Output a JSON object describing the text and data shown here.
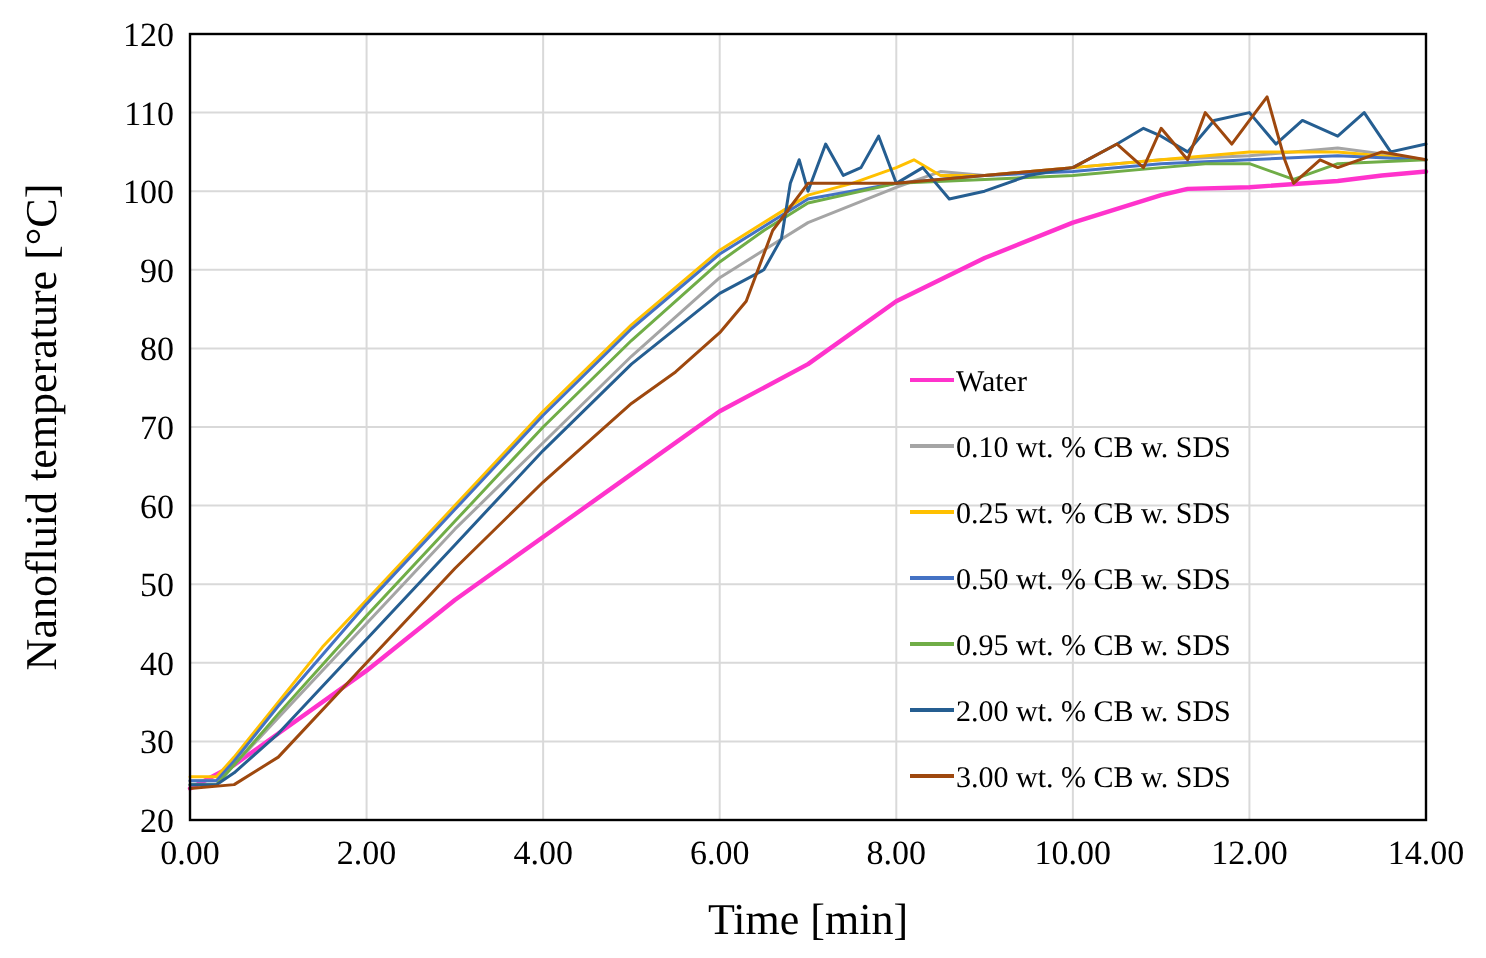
{
  "chart_data": {
    "type": "line",
    "xlabel": "Time [min]",
    "ylabel": "Nanofluid temperature [°C]",
    "xlim": [
      0,
      14
    ],
    "ylim": [
      20,
      120
    ],
    "xticks": [
      {
        "value": 0,
        "label": "0.00"
      },
      {
        "value": 2,
        "label": "2.00"
      },
      {
        "value": 4,
        "label": "4.00"
      },
      {
        "value": 6,
        "label": "6.00"
      },
      {
        "value": 8,
        "label": "8.00"
      },
      {
        "value": 10,
        "label": "10.00"
      },
      {
        "value": 12,
        "label": "12.00"
      },
      {
        "value": 14,
        "label": "14.00"
      }
    ],
    "yticks": [
      20,
      30,
      40,
      50,
      60,
      70,
      80,
      90,
      100,
      110,
      120
    ],
    "grid": true,
    "legend": "bottom right",
    "marker": "none",
    "line_style": "solid",
    "series": [
      {
        "name": "Water",
        "color": "#ff33cc",
        "x": [
          0,
          0.5,
          1,
          2,
          3,
          4,
          5,
          6,
          7,
          8,
          9,
          10,
          11,
          11.3,
          12,
          13,
          13.5,
          14
        ],
        "values": [
          24,
          27,
          31,
          39,
          48,
          56,
          64,
          72,
          78,
          86,
          91.5,
          96,
          99.5,
          100.3,
          100.5,
          101.3,
          102,
          102.5
        ]
      },
      {
        "name": "0.10 wt. % CB w. SDS",
        "color": "#a5a5a5",
        "x": [
          0,
          0.3,
          0.5,
          1,
          2,
          3,
          4,
          5,
          6,
          7,
          8,
          8.5,
          9,
          10,
          11,
          12,
          13,
          14
        ],
        "values": [
          25,
          25,
          27,
          33,
          45,
          57,
          68,
          79,
          89,
          96,
          100.5,
          102.5,
          102,
          103,
          104,
          104.5,
          105.5,
          104
        ]
      },
      {
        "name": "0.25 wt. % CB w. SDS",
        "color": "#ffc000",
        "x": [
          0,
          0.3,
          0.5,
          1,
          1.5,
          2,
          3,
          4,
          5,
          6,
          6.5,
          7,
          7.5,
          8,
          8.2,
          8.5,
          9,
          10,
          11,
          12,
          13,
          14
        ],
        "values": [
          25.5,
          25.5,
          28,
          35,
          42,
          48,
          60,
          72,
          83,
          92.5,
          96,
          99.5,
          101,
          103,
          104,
          102,
          102,
          103,
          104,
          105,
          105,
          104
        ]
      },
      {
        "name": "0.50 wt. % CB w. SDS",
        "color": "#4472c4",
        "x": [
          0,
          0.3,
          0.5,
          1,
          2,
          3,
          4,
          5,
          6,
          6.5,
          7,
          8,
          9,
          10,
          11,
          12,
          13,
          14
        ],
        "values": [
          25,
          25,
          27.5,
          34.5,
          47.5,
          59.5,
          71.5,
          82.5,
          92,
          95.5,
          99,
          101,
          102,
          102.5,
          103.5,
          104,
          104.5,
          104
        ]
      },
      {
        "name": "0.95 wt. % CB w. SDS",
        "color": "#70ad47",
        "x": [
          0,
          0.3,
          0.5,
          1,
          2,
          3,
          4,
          5,
          6,
          6.5,
          7,
          8,
          9,
          10,
          11,
          11.5,
          12,
          12.5,
          13,
          14
        ],
        "values": [
          24.5,
          24.5,
          27,
          33.5,
          46,
          58,
          70,
          81,
          91,
          95,
          98.5,
          101,
          101.5,
          102,
          103,
          103.5,
          103.5,
          101.5,
          103.5,
          104
        ]
      },
      {
        "name": "2.00 wt. % CB w. SDS",
        "color": "#255e91",
        "x": [
          0,
          0.3,
          0.5,
          1,
          2,
          3,
          4,
          5,
          6,
          6.5,
          6.7,
          6.8,
          6.9,
          7,
          7.2,
          7.4,
          7.6,
          7.8,
          8,
          8.3,
          8.6,
          9,
          9.5,
          10,
          10.5,
          10.8,
          11,
          11.3,
          11.6,
          12,
          12.3,
          12.6,
          13,
          13.3,
          13.6,
          14
        ],
        "values": [
          24.5,
          24.5,
          26,
          31,
          43,
          55,
          67,
          78,
          87,
          90,
          94,
          101,
          104,
          100,
          106,
          102,
          103,
          107,
          101,
          103,
          99,
          100,
          102,
          103,
          106,
          108,
          107,
          105,
          109,
          110,
          106,
          109,
          107,
          110,
          105,
          106
        ]
      },
      {
        "name": "3.00 wt. % CB w. SDS",
        "color": "#9e480e",
        "x": [
          0,
          0.5,
          1,
          2,
          3,
          4,
          5,
          5.5,
          6,
          6.3,
          6.6,
          7,
          8,
          9,
          10,
          10.5,
          10.8,
          11,
          11.3,
          11.5,
          11.8,
          12,
          12.2,
          12.4,
          12.5,
          12.8,
          13,
          13.5,
          14
        ],
        "values": [
          24,
          24.5,
          28,
          40,
          52,
          63,
          73,
          77,
          82,
          86,
          95,
          101,
          101,
          102,
          103,
          106,
          103,
          108,
          104,
          110,
          106,
          109,
          112,
          104,
          101,
          104,
          103,
          105,
          104
        ]
      }
    ]
  }
}
